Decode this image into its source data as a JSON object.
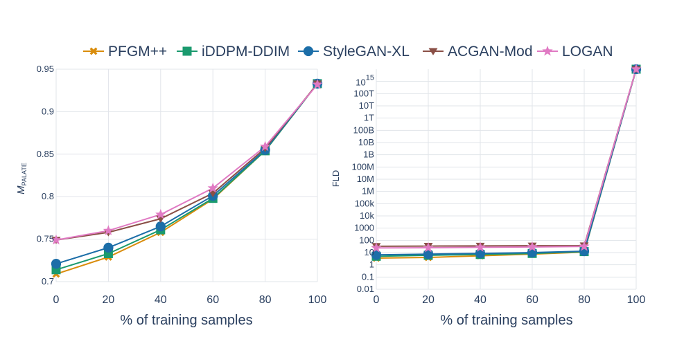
{
  "chart_data": [
    {
      "type": "line",
      "xlabel": "% of training samples",
      "ylabel": "M",
      "ylabel_sub": "PALATE",
      "xlim": [
        0,
        100
      ],
      "ylim": [
        0.7,
        0.95
      ],
      "x": [
        0,
        20,
        40,
        60,
        80,
        100
      ],
      "x_ticks": [
        "0",
        "20",
        "40",
        "60",
        "80",
        "100"
      ],
      "y_tick_values": [
        0.7,
        0.75,
        0.8,
        0.85,
        0.9,
        0.95
      ],
      "y_ticks": [
        "0.7",
        "0.75",
        "0.8",
        "0.85",
        "0.9",
        "0.95"
      ],
      "series": [
        {
          "name": "PFGM++",
          "color": "#d98c0b",
          "marker": "x",
          "values": [
            0.709,
            0.729,
            0.758,
            0.797,
            0.854,
            0.933
          ]
        },
        {
          "name": "iDDPM-DDIM",
          "color": "#1a9a6e",
          "marker": "square",
          "values": [
            0.714,
            0.733,
            0.761,
            0.798,
            0.854,
            0.933
          ]
        },
        {
          "name": "StyleGAN-XL",
          "color": "#1c6ea8",
          "marker": "circle",
          "values": [
            0.721,
            0.74,
            0.765,
            0.801,
            0.855,
            0.933
          ]
        },
        {
          "name": "ACGAN-Mod",
          "color": "#8a4f46",
          "marker": "triangle-down",
          "values": [
            0.749,
            0.758,
            0.774,
            0.804,
            0.857,
            0.933
          ]
        },
        {
          "name": "LOGAN",
          "color": "#e07ac3",
          "marker": "star",
          "values": [
            0.749,
            0.76,
            0.779,
            0.81,
            0.859,
            0.932
          ]
        }
      ]
    },
    {
      "type": "line",
      "yscale": "log",
      "xlabel": "% of training samples",
      "ylabel": "FLD",
      "xlim": [
        0,
        100
      ],
      "ylim_log10": [
        -2,
        16
      ],
      "x": [
        0,
        20,
        40,
        60,
        80,
        100
      ],
      "x_ticks": [
        "0",
        "20",
        "40",
        "60",
        "80",
        "100"
      ],
      "y_tick_exps": [
        -2,
        -1,
        0,
        1,
        2,
        3,
        4,
        5,
        6,
        7,
        8,
        9,
        10,
        11,
        12,
        13,
        14
      ],
      "y_ticks": [
        "0.01",
        "0.1",
        "1",
        "10",
        "100",
        "1000",
        "10k",
        "100k",
        "1M",
        "10M",
        "100M",
        "1B",
        "10B",
        "100B",
        "1T",
        "10T",
        "100T"
      ],
      "y_top_label_base": "10",
      "y_top_label_exp": "15",
      "y_top_exp": 15,
      "series": [
        {
          "name": "PFGM++",
          "color": "#d98c0b",
          "marker": "x",
          "values": [
            3.5,
            4.0,
            5.5,
            7.5,
            11,
            1e+16
          ]
        },
        {
          "name": "iDDPM-DDIM",
          "color": "#1a9a6e",
          "marker": "square",
          "values": [
            5.0,
            6.0,
            7.0,
            8.5,
            12,
            1e+16
          ]
        },
        {
          "name": "StyleGAN-XL",
          "color": "#1c6ea8",
          "marker": "circle",
          "values": [
            6.5,
            7.5,
            8.5,
            10,
            13,
            1e+16
          ]
        },
        {
          "name": "ACGAN-Mod",
          "color": "#8a4f46",
          "marker": "triangle-down",
          "values": [
            33,
            34,
            35,
            36,
            37,
            1e+16
          ]
        },
        {
          "name": "LOGAN",
          "color": "#e07ac3",
          "marker": "star",
          "values": [
            24,
            25,
            27,
            29,
            32,
            1e+16
          ]
        }
      ]
    }
  ]
}
